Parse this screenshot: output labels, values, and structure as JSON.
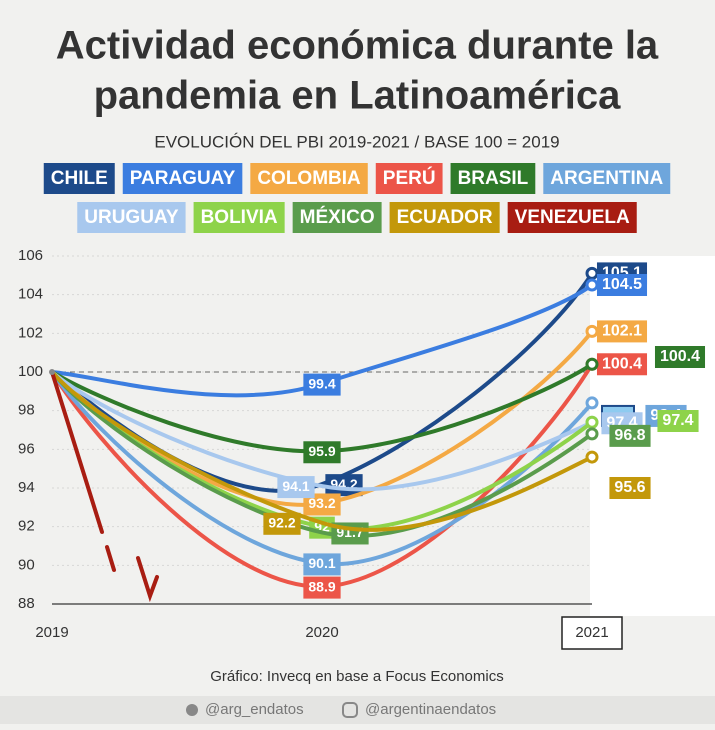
{
  "chart_data": {
    "type": "line",
    "title": [
      "Actividad económica durante la",
      "pandemia en Latinoamérica"
    ],
    "subtitle": "EVOLUCIÓN DEL PBI 2019-2021  /  BASE 100 = 2019",
    "source": "Gráfico: Invecq en base a Focus Economics",
    "footer": [
      "@arg_endatos",
      "@argentinaendatos"
    ],
    "categories": [
      "2019",
      "2020",
      "2021"
    ],
    "highlight_category": 2,
    "baseline": 100,
    "ylim": [
      88,
      106
    ],
    "yticks": [
      88,
      90,
      92,
      94,
      96,
      98,
      100,
      102,
      104,
      106
    ],
    "grid": true,
    "series": [
      {
        "name": "CHILE",
        "color": "#1d4a8a",
        "values": [
          100,
          94.2,
          105.1
        ]
      },
      {
        "name": "PARAGUAY",
        "color": "#3b7de0",
        "values": [
          100,
          99.4,
          104.5
        ]
      },
      {
        "name": "COLOMBIA",
        "color": "#f4a944",
        "values": [
          100,
          93.2,
          102.1
        ]
      },
      {
        "name": "PERÚ",
        "color": "#ec5548",
        "values": [
          100,
          88.9,
          100.4
        ]
      },
      {
        "name": "BRASIL",
        "color": "#2f7a2a",
        "values": [
          100,
          95.9,
          100.4
        ]
      },
      {
        "name": "ARGENTINA",
        "color": "#6ea6dc",
        "values": [
          100,
          90.1,
          98.4
        ]
      },
      {
        "name": "URUGUAY",
        "color": "#a8c8ee",
        "values": [
          100,
          94.1,
          97.4
        ]
      },
      {
        "name": "BOLIVIA",
        "color": "#8ed34a",
        "values": [
          100,
          92,
          97.4
        ]
      },
      {
        "name": "MÉXICO",
        "color": "#5a9c4c",
        "values": [
          100,
          91.7,
          96.8
        ]
      },
      {
        "name": "ECUADOR",
        "color": "#c3980a",
        "values": [
          100,
          92.2,
          95.6
        ]
      },
      {
        "name": "VENEZUELA",
        "color": "#a81d12",
        "values": [
          100,
          null,
          null
        ]
      }
    ]
  }
}
